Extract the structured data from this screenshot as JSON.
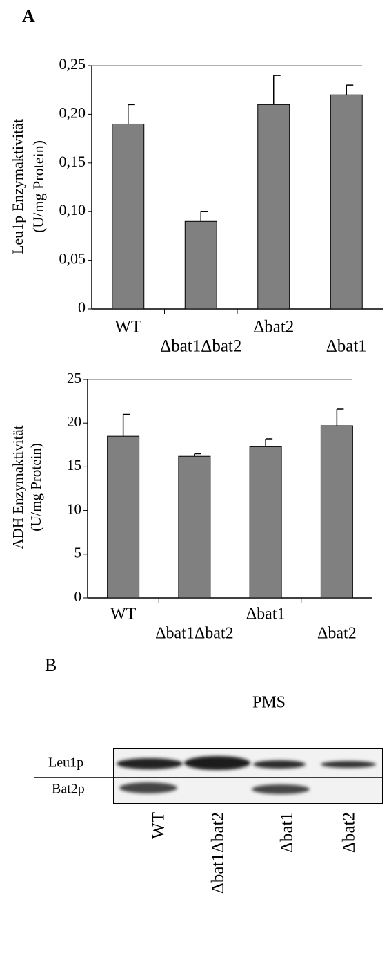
{
  "panel_a_label": "A",
  "chart_data": [
    {
      "type": "bar",
      "y_label": [
        "Leu1p Enzymaktivität",
        "(U/mg Protein)"
      ],
      "categories": [
        "WT",
        "Δbat1Δbat2",
        "Δbat2",
        "Δbat1"
      ],
      "values": [
        0.19,
        0.09,
        0.21,
        0.22
      ],
      "errors": [
        0.02,
        0.01,
        0.03,
        0.01
      ],
      "color": "#808080",
      "ylim": [
        0,
        0.25
      ],
      "yticks": [
        0,
        {
          "value": 0.05,
          "label": "0,05"
        },
        {
          "value": 0.1,
          "label": "0,10"
        },
        {
          "value": 0.15,
          "label": "0,15"
        },
        {
          "value": 0.2,
          "label": "0,20"
        },
        {
          "value": 0.25,
          "label": "0,25"
        }
      ]
    },
    {
      "type": "bar",
      "y_label": [
        "ADH Enzymaktivität",
        "(U/mg Protein)"
      ],
      "categories": [
        "WT",
        "Δbat1Δbat2",
        "Δbat1",
        "Δbat2"
      ],
      "values": [
        18.5,
        16.2,
        17.3,
        19.7
      ],
      "errors": [
        2.5,
        0.3,
        0.9,
        1.9
      ],
      "color": "#808080",
      "ylim": [
        0,
        25
      ],
      "yticks": [
        0,
        5,
        10,
        15,
        20,
        25
      ]
    }
  ],
  "panel_b": {
    "label": "B",
    "title": "PMS",
    "rows": [
      "Leu1p",
      "Bat2p"
    ],
    "lanes": [
      "WT",
      "Δbat1Δbat2",
      "Δbat1",
      "Δbat2"
    ]
  }
}
